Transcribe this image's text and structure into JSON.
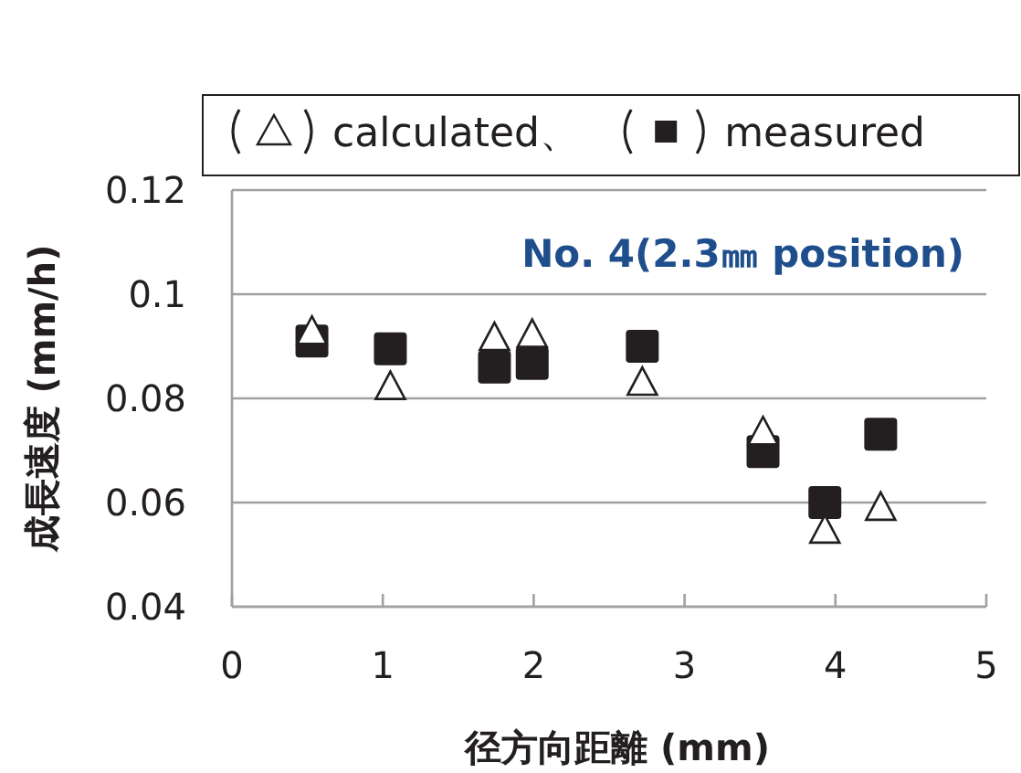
{
  "chart_data": {
    "type": "scatter",
    "xlabel": "径方向距離 (mm)",
    "ylabel": "成長速度 (mm/h)",
    "annotations": [
      "No. 4(2.3㎜ position)"
    ],
    "xlim": [
      0,
      5
    ],
    "xticks": [
      0,
      1,
      2,
      3,
      4,
      5
    ],
    "ylim": [
      0.04,
      0.12
    ],
    "yticks": [
      0.04,
      0.06,
      0.08,
      {
        "value": 0.1,
        "label": "0.1"
      },
      0.12
    ],
    "grid": "y",
    "legend": "top",
    "series": [
      {
        "name": "measured",
        "color": "#231f20",
        "marker": "square",
        "x": [
          0.53,
          1.05,
          1.74,
          1.99,
          2.72,
          3.52,
          3.93,
          4.3
        ],
        "values": [
          0.091,
          0.0895,
          0.086,
          0.0867,
          0.09,
          0.0698,
          0.06,
          0.0731
        ]
      },
      {
        "name": "calculated、",
        "color": "#231f20",
        "marker": "triangle",
        "x": [
          0.53,
          1.05,
          1.74,
          1.99,
          2.72,
          3.52,
          3.93,
          4.3
        ],
        "values": [
          0.0926,
          0.082,
          0.0914,
          0.092,
          0.0828,
          0.0733,
          0.0544,
          0.0588
        ]
      }
    ]
  }
}
